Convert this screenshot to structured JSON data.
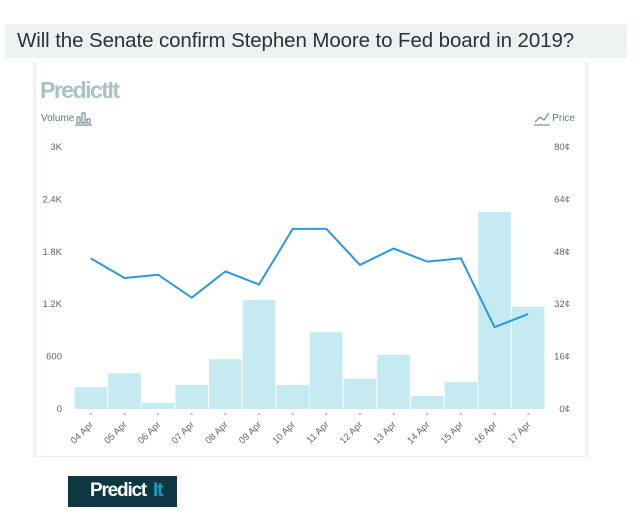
{
  "title": "Will the Senate confirm Stephen Moore to Fed board in 2019?",
  "brand": {
    "watermark": "PredictIt",
    "footer_logo_main": "Predict",
    "footer_logo_accent": "It",
    "logo_bg": "#0e3841",
    "accent": "#1a9bc0"
  },
  "legend": {
    "volume_label": "Volume",
    "price_label": "Price",
    "volume_icon": "bar-chart-icon",
    "price_icon": "line-chart-icon"
  },
  "colors": {
    "bars": "#c6eaf2",
    "line": "#2a9ad8"
  },
  "chart_data": {
    "type": "bar+line",
    "categories": [
      "04 Apr",
      "05 Apr",
      "06 Apr",
      "07 Apr",
      "08 Apr",
      "09 Apr",
      "10 Apr",
      "11 Apr",
      "12 Apr",
      "13 Apr",
      "14 Apr",
      "15 Apr",
      "16 Apr",
      "17 Apr"
    ],
    "series": [
      {
        "name": "Volume",
        "type": "bar",
        "axis": "left",
        "values": [
          250,
          410,
          70,
          275,
          570,
          1250,
          275,
          880,
          345,
          620,
          150,
          310,
          2255,
          1170
        ]
      },
      {
        "name": "Price",
        "type": "line",
        "axis": "right",
        "values": [
          46,
          40,
          41,
          34,
          42,
          38,
          55,
          55,
          44,
          49,
          45,
          46,
          25,
          29
        ]
      }
    ],
    "left_axis": {
      "ticks": [
        "0",
        "600",
        "1.2K",
        "1.8K",
        "2.4K",
        "3K"
      ],
      "ylim": [
        0,
        3000
      ]
    },
    "right_axis": {
      "ticks": [
        "0¢",
        "16¢",
        "32¢",
        "48¢",
        "64¢",
        "80¢"
      ],
      "ylim": [
        0,
        80
      ]
    },
    "grid": false
  }
}
